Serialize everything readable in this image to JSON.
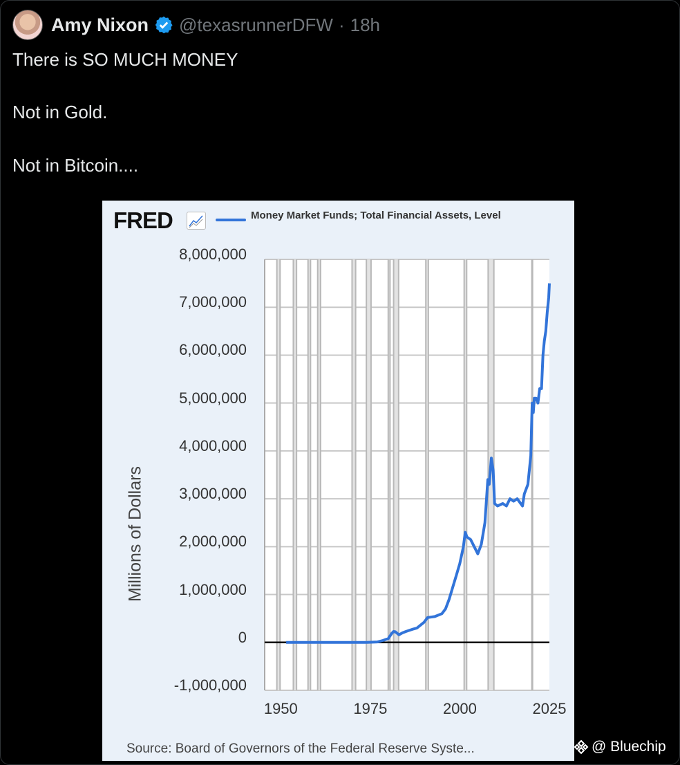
{
  "tweet": {
    "author_name": "Amy Nixon",
    "handle": "@texasrunnerDFW",
    "separator": "·",
    "time": "18h",
    "lines": [
      "There is SO MUCH MONEY",
      "Not in Gold.",
      "Not in Bitcoin...."
    ]
  },
  "watermark": {
    "icon": "binance-diamond-icon",
    "text": "@ Bluechip"
  },
  "chart_data": {
    "type": "line",
    "brand": "FRED",
    "title": "Money Market Funds; Total Financial Assets, Level",
    "ylabel": "Millions of Dollars",
    "xlabel": "",
    "source": "Source: Board of Governors of the Federal Reserve Syste...",
    "xlim": [
      1945.5,
      2025
    ],
    "ylim": [
      -1000000,
      8000000
    ],
    "x_ticks": [
      "1950",
      "1975",
      "2000",
      "2025"
    ],
    "x_tick_values": [
      1950,
      1975,
      2000,
      2025
    ],
    "y_ticks": [
      "8,000,000",
      "7,000,000",
      "6,000,000",
      "5,000,000",
      "4,000,000",
      "3,000,000",
      "2,000,000",
      "1,000,000",
      "0",
      "-1,000,000"
    ],
    "y_tick_values": [
      8000000,
      7000000,
      6000000,
      5000000,
      4000000,
      3000000,
      2000000,
      1000000,
      0,
      -1000000
    ],
    "grid": true,
    "series_color": "#3274d9",
    "recessions": [
      [
        1948.9,
        1949.8
      ],
      [
        1953.5,
        1954.4
      ],
      [
        1957.6,
        1958.3
      ],
      [
        1960.3,
        1961.1
      ],
      [
        1969.9,
        1970.9
      ],
      [
        1973.9,
        1975.2
      ],
      [
        1980.0,
        1980.5
      ],
      [
        1981.5,
        1982.9
      ],
      [
        1990.5,
        1991.2
      ],
      [
        2001.2,
        2001.9
      ],
      [
        2007.9,
        2009.5
      ],
      [
        2020.1,
        2020.3
      ]
    ],
    "series": [
      {
        "name": "Money Market Funds; Total Financial Assets, Level",
        "x": [
          1951.5,
          1974,
          1977,
          1978.5,
          1980,
          1981,
          1981.5,
          1982,
          1983,
          1984,
          1985,
          1987,
          1988,
          1990,
          1991,
          1993,
          1995,
          1996,
          1997,
          1998,
          1999,
          2000,
          2001,
          2001.5,
          2002,
          2003,
          2004,
          2005,
          2006,
          2007,
          2007.8,
          2008.2,
          2008.8,
          2009.3,
          2009.7,
          2010.5,
          2012,
          2013,
          2014,
          2015,
          2016,
          2017,
          2017.5,
          2018,
          2019,
          2019.8,
          2020.2,
          2020.5,
          2020.8,
          2021.3,
          2021.8,
          2022.3,
          2022.8,
          2023.2,
          2023.6,
          2024,
          2024.4,
          2024.8,
          2025
        ],
        "y": [
          0,
          0,
          10000,
          40000,
          80000,
          190000,
          230000,
          220000,
          160000,
          200000,
          230000,
          280000,
          300000,
          420000,
          520000,
          540000,
          600000,
          700000,
          900000,
          1150000,
          1400000,
          1650000,
          2000000,
          2300000,
          2200000,
          2150000,
          2000000,
          1850000,
          2050000,
          2500000,
          3400000,
          3300000,
          3850000,
          3600000,
          2900000,
          2850000,
          2900000,
          2850000,
          3000000,
          2950000,
          3000000,
          2900000,
          2850000,
          3100000,
          3300000,
          3900000,
          5000000,
          4800000,
          5100000,
          5100000,
          5000000,
          5300000,
          5300000,
          6000000,
          6300000,
          6500000,
          6900000,
          7200000,
          7500000
        ]
      }
    ]
  }
}
